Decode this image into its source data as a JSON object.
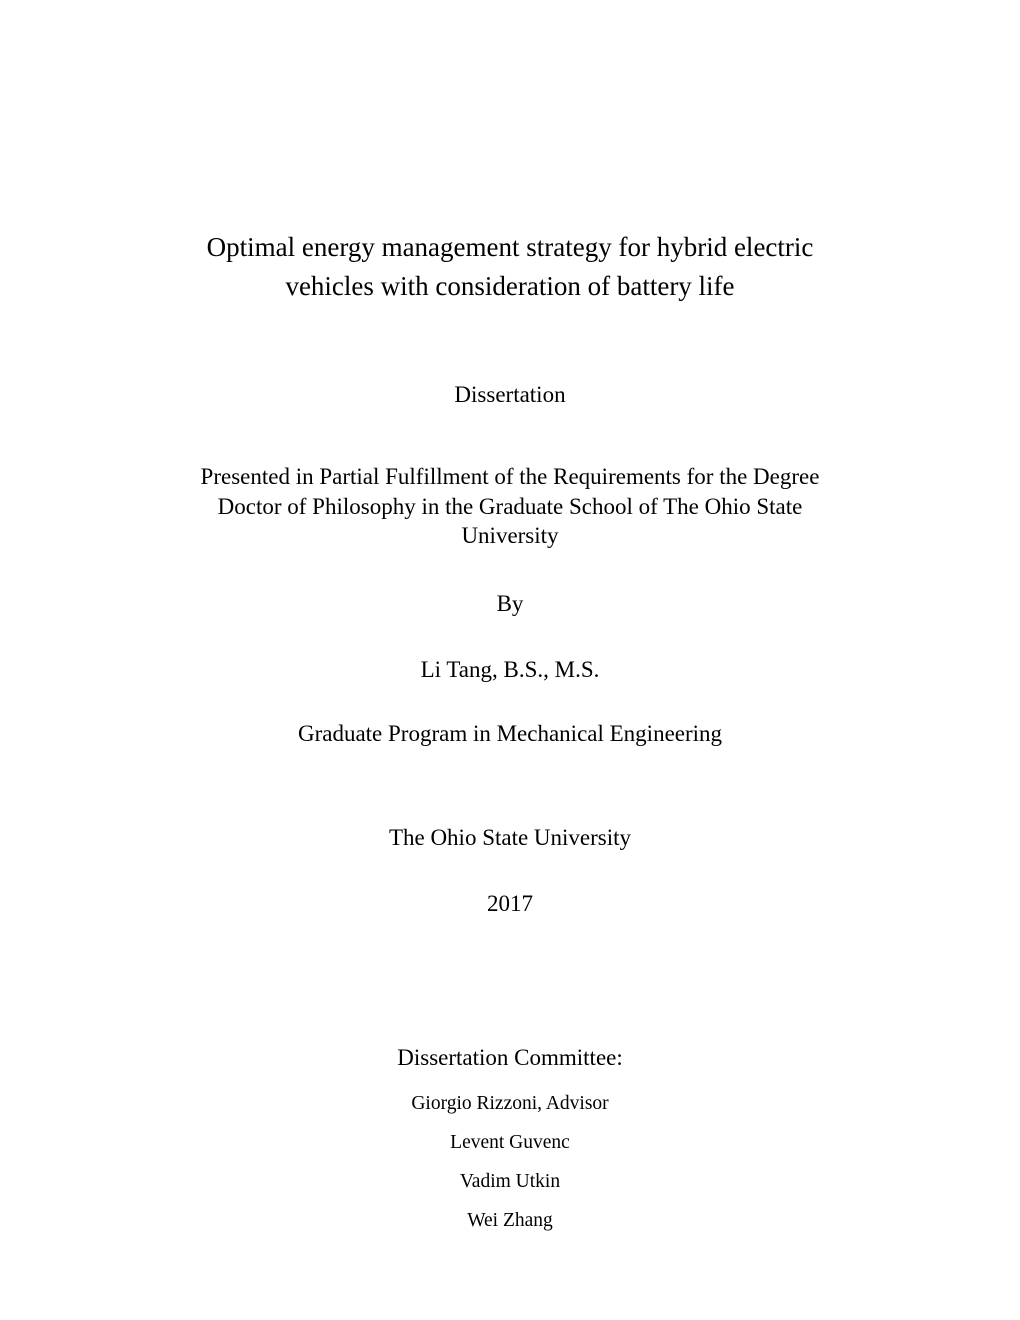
{
  "title": "Optimal energy management strategy for hybrid electric vehicles with consideration of battery life",
  "docType": "Dissertation",
  "fulfillment": "Presented in Partial Fulfillment of the Requirements for the Degree Doctor of Philosophy in the Graduate School of The Ohio State University",
  "by": "By",
  "author": "Li Tang, B.S., M.S.",
  "program": "Graduate Program in Mechanical Engineering",
  "university": "The Ohio State University",
  "year": "2017",
  "committeeHeading": "Dissertation Committee:",
  "committee": [
    "Giorgio Rizzoni, Advisor",
    "Levent Guvenc",
    "Vadim Utkin",
    "Wei Zhang"
  ],
  "style": {
    "backgroundColor": "#ffffff",
    "textColor": "#000000",
    "titleFontSize": 27,
    "bodyFontSize": 23,
    "committeeFontSize": 19.5,
    "pageWidth": 1020,
    "pageHeight": 1320
  }
}
